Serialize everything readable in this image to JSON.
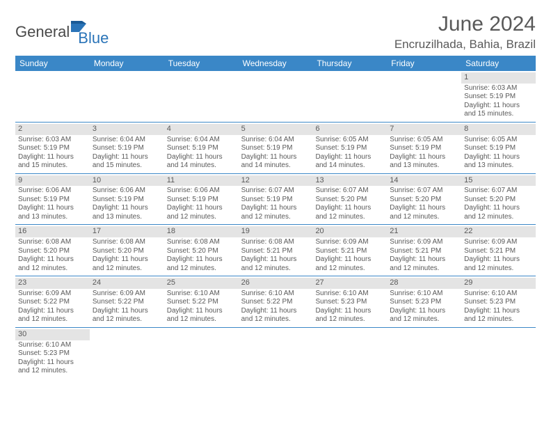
{
  "brand": {
    "name_a": "General",
    "name_b": "Blue"
  },
  "title": "June 2024",
  "location": "Encruzilhada, Bahia, Brazil",
  "header_bg": "#3a87c7",
  "header_fg": "#ffffff",
  "daynum_bg": "#e4e4e4",
  "text_color": "#595959",
  "row_border": "#3a87c7",
  "day_headers": [
    "Sunday",
    "Monday",
    "Tuesday",
    "Wednesday",
    "Thursday",
    "Friday",
    "Saturday"
  ],
  "label_sunrise": "Sunrise: ",
  "label_sunset": "Sunset: ",
  "label_daylight_a": "Daylight: ",
  "label_daylight_b": " hours",
  "label_daylight_c": "and ",
  "label_daylight_d": " minutes.",
  "weeks": [
    [
      null,
      null,
      null,
      null,
      null,
      null,
      {
        "n": "1",
        "sunrise": "6:03 AM",
        "sunset": "5:19 PM",
        "dh": "11",
        "dm": "15"
      }
    ],
    [
      {
        "n": "2",
        "sunrise": "6:03 AM",
        "sunset": "5:19 PM",
        "dh": "11",
        "dm": "15"
      },
      {
        "n": "3",
        "sunrise": "6:04 AM",
        "sunset": "5:19 PM",
        "dh": "11",
        "dm": "15"
      },
      {
        "n": "4",
        "sunrise": "6:04 AM",
        "sunset": "5:19 PM",
        "dh": "11",
        "dm": "14"
      },
      {
        "n": "5",
        "sunrise": "6:04 AM",
        "sunset": "5:19 PM",
        "dh": "11",
        "dm": "14"
      },
      {
        "n": "6",
        "sunrise": "6:05 AM",
        "sunset": "5:19 PM",
        "dh": "11",
        "dm": "14"
      },
      {
        "n": "7",
        "sunrise": "6:05 AM",
        "sunset": "5:19 PM",
        "dh": "11",
        "dm": "13"
      },
      {
        "n": "8",
        "sunrise": "6:05 AM",
        "sunset": "5:19 PM",
        "dh": "11",
        "dm": "13"
      }
    ],
    [
      {
        "n": "9",
        "sunrise": "6:06 AM",
        "sunset": "5:19 PM",
        "dh": "11",
        "dm": "13"
      },
      {
        "n": "10",
        "sunrise": "6:06 AM",
        "sunset": "5:19 PM",
        "dh": "11",
        "dm": "13"
      },
      {
        "n": "11",
        "sunrise": "6:06 AM",
        "sunset": "5:19 PM",
        "dh": "11",
        "dm": "12"
      },
      {
        "n": "12",
        "sunrise": "6:07 AM",
        "sunset": "5:19 PM",
        "dh": "11",
        "dm": "12"
      },
      {
        "n": "13",
        "sunrise": "6:07 AM",
        "sunset": "5:20 PM",
        "dh": "11",
        "dm": "12"
      },
      {
        "n": "14",
        "sunrise": "6:07 AM",
        "sunset": "5:20 PM",
        "dh": "11",
        "dm": "12"
      },
      {
        "n": "15",
        "sunrise": "6:07 AM",
        "sunset": "5:20 PM",
        "dh": "11",
        "dm": "12"
      }
    ],
    [
      {
        "n": "16",
        "sunrise": "6:08 AM",
        "sunset": "5:20 PM",
        "dh": "11",
        "dm": "12"
      },
      {
        "n": "17",
        "sunrise": "6:08 AM",
        "sunset": "5:20 PM",
        "dh": "11",
        "dm": "12"
      },
      {
        "n": "18",
        "sunrise": "6:08 AM",
        "sunset": "5:20 PM",
        "dh": "11",
        "dm": "12"
      },
      {
        "n": "19",
        "sunrise": "6:08 AM",
        "sunset": "5:21 PM",
        "dh": "11",
        "dm": "12"
      },
      {
        "n": "20",
        "sunrise": "6:09 AM",
        "sunset": "5:21 PM",
        "dh": "11",
        "dm": "12"
      },
      {
        "n": "21",
        "sunrise": "6:09 AM",
        "sunset": "5:21 PM",
        "dh": "11",
        "dm": "12"
      },
      {
        "n": "22",
        "sunrise": "6:09 AM",
        "sunset": "5:21 PM",
        "dh": "11",
        "dm": "12"
      }
    ],
    [
      {
        "n": "23",
        "sunrise": "6:09 AM",
        "sunset": "5:22 PM",
        "dh": "11",
        "dm": "12"
      },
      {
        "n": "24",
        "sunrise": "6:09 AM",
        "sunset": "5:22 PM",
        "dh": "11",
        "dm": "12"
      },
      {
        "n": "25",
        "sunrise": "6:10 AM",
        "sunset": "5:22 PM",
        "dh": "11",
        "dm": "12"
      },
      {
        "n": "26",
        "sunrise": "6:10 AM",
        "sunset": "5:22 PM",
        "dh": "11",
        "dm": "12"
      },
      {
        "n": "27",
        "sunrise": "6:10 AM",
        "sunset": "5:23 PM",
        "dh": "11",
        "dm": "12"
      },
      {
        "n": "28",
        "sunrise": "6:10 AM",
        "sunset": "5:23 PM",
        "dh": "11",
        "dm": "12"
      },
      {
        "n": "29",
        "sunrise": "6:10 AM",
        "sunset": "5:23 PM",
        "dh": "11",
        "dm": "12"
      }
    ],
    [
      {
        "n": "30",
        "sunrise": "6:10 AM",
        "sunset": "5:23 PM",
        "dh": "11",
        "dm": "12"
      },
      null,
      null,
      null,
      null,
      null,
      null
    ]
  ]
}
